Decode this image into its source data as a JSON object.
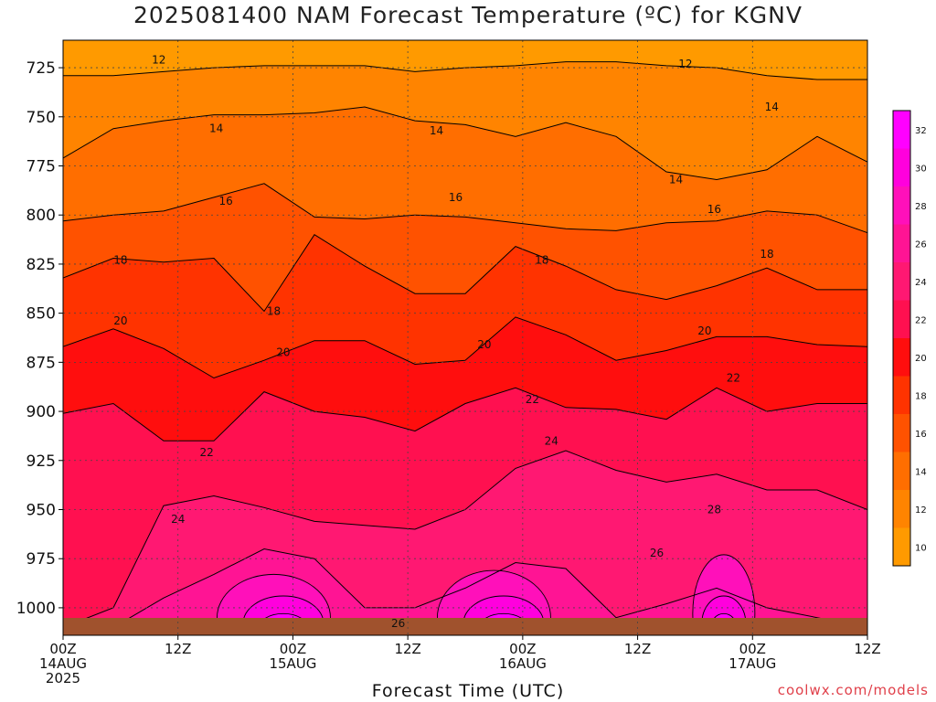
{
  "chart_data": {
    "type": "heatmap",
    "title": "2025081400 NAM Forecast Temperature (ºC) for KGNV",
    "xlabel": "Forecast Time (UTC)",
    "ylabel": "",
    "x_hours_range": [
      0,
      84
    ],
    "x_ticks": [
      {
        "hour": 0,
        "line1": "00Z",
        "line2": "14AUG",
        "line3": "2025"
      },
      {
        "hour": 12,
        "line1": "12Z",
        "line2": "",
        "line3": ""
      },
      {
        "hour": 24,
        "line1": "00Z",
        "line2": "15AUG",
        "line3": ""
      },
      {
        "hour": 36,
        "line1": "12Z",
        "line2": "",
        "line3": ""
      },
      {
        "hour": 48,
        "line1": "00Z",
        "line2": "16AUG",
        "line3": ""
      },
      {
        "hour": 60,
        "line1": "12Z",
        "line2": "",
        "line3": ""
      },
      {
        "hour": 72,
        "line1": "00Z",
        "line2": "17AUG",
        "line3": ""
      },
      {
        "hour": 84,
        "line1": "12Z",
        "line2": "",
        "line3": ""
      }
    ],
    "y_pressure_range": [
      711,
      1014
    ],
    "y_ticks": [
      725,
      750,
      775,
      800,
      825,
      850,
      875,
      900,
      925,
      950,
      975,
      1000
    ],
    "grid": true,
    "colorbar": {
      "levels": [
        10,
        12,
        14,
        16,
        18,
        20,
        22,
        24,
        26,
        28,
        30,
        32
      ],
      "colors": [
        "#ff9a00",
        "#ff8400",
        "#ff6e00",
        "#ff5200",
        "#ff3300",
        "#ff0e0e",
        "#ff1050",
        "#ff1872",
        "#ff1494",
        "#ff10ba",
        "#ff00dd",
        "#ff00ff"
      ]
    },
    "isotherms": [
      {
        "value": 12,
        "pressures": [
          729,
          729,
          727,
          725,
          724,
          724,
          724,
          727,
          725,
          724,
          722,
          722,
          724,
          725,
          729,
          731,
          731
        ]
      },
      {
        "value": 14,
        "pressures": [
          771,
          756,
          752,
          749,
          749,
          748,
          745,
          752,
          754,
          760,
          753,
          760,
          778,
          782,
          777,
          760,
          773
        ]
      },
      {
        "value": 16,
        "pressures": [
          803,
          800,
          798,
          791,
          784,
          801,
          802,
          800,
          801,
          804,
          807,
          808,
          804,
          803,
          798,
          800,
          809
        ]
      },
      {
        "value": 18,
        "pressures": [
          832,
          822,
          824,
          822,
          849,
          810,
          826,
          840,
          840,
          816,
          826,
          838,
          843,
          836,
          827,
          838,
          838
        ]
      },
      {
        "value": 20,
        "pressures": [
          867,
          858,
          868,
          883,
          874,
          864,
          864,
          876,
          874,
          852,
          861,
          874,
          869,
          862,
          862,
          866,
          867
        ]
      },
      {
        "value": 22,
        "pressures": [
          901,
          896,
          915,
          915,
          890,
          900,
          903,
          910,
          896,
          888,
          898,
          899,
          904,
          888,
          900,
          896,
          896
        ]
      },
      {
        "value": 24,
        "pressures": [
          1010,
          1000,
          948,
          943,
          949,
          956,
          958,
          960,
          950,
          929,
          920,
          930,
          936,
          932,
          940,
          940,
          950
        ]
      },
      {
        "value": 26,
        "pressures": [
          1010,
          1010,
          995,
          983,
          970,
          975,
          1000,
          1000,
          990,
          977,
          980,
          1005,
          998,
          990,
          1000,
          1005,
          1010
        ]
      }
    ],
    "contour_labels": [
      {
        "text": "12",
        "hour": 10,
        "p": 721
      },
      {
        "text": "12",
        "hour": 65,
        "p": 723
      },
      {
        "text": "14",
        "hour": 16,
        "p": 756
      },
      {
        "text": "14",
        "hour": 39,
        "p": 757
      },
      {
        "text": "14",
        "hour": 64,
        "p": 782
      },
      {
        "text": "14",
        "hour": 74,
        "p": 745
      },
      {
        "text": "16",
        "hour": 17,
        "p": 793
      },
      {
        "text": "16",
        "hour": 41,
        "p": 791
      },
      {
        "text": "16",
        "hour": 68,
        "p": 797
      },
      {
        "text": "18",
        "hour": 6,
        "p": 823
      },
      {
        "text": "18",
        "hour": 22,
        "p": 849
      },
      {
        "text": "18",
        "hour": 50,
        "p": 823
      },
      {
        "text": "18",
        "hour": 73.5,
        "p": 820
      },
      {
        "text": "20",
        "hour": 6,
        "p": 854
      },
      {
        "text": "20",
        "hour": 23,
        "p": 870
      },
      {
        "text": "20",
        "hour": 44,
        "p": 866
      },
      {
        "text": "20",
        "hour": 67,
        "p": 859
      },
      {
        "text": "22",
        "hour": 15,
        "p": 921
      },
      {
        "text": "22",
        "hour": 49,
        "p": 894
      },
      {
        "text": "22",
        "hour": 70,
        "p": 883
      },
      {
        "text": "24",
        "hour": 12,
        "p": 955
      },
      {
        "text": "24",
        "hour": 51,
        "p": 915
      },
      {
        "text": "26",
        "hour": 35,
        "p": 1008
      },
      {
        "text": "26",
        "hour": 62,
        "p": 972
      },
      {
        "text": "28",
        "hour": 68,
        "p": 950
      }
    ]
  },
  "credit": "coolwx.com/models"
}
